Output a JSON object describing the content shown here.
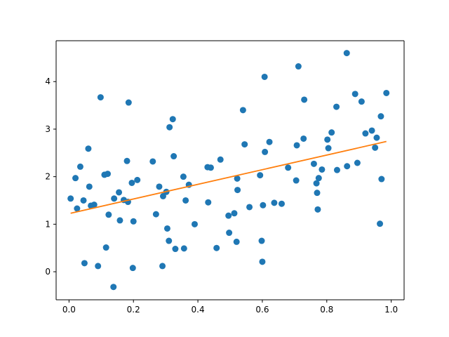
{
  "chart_data": {
    "type": "scatter",
    "title": "",
    "xlabel": "",
    "ylabel": "",
    "xlim": [
      -0.04,
      1.04
    ],
    "ylim": [
      -0.59,
      4.86
    ],
    "grid": false,
    "x_ticks": [
      0.0,
      0.2,
      0.4,
      0.6,
      0.8,
      1.0
    ],
    "x_tick_labels": [
      "0.0",
      "0.2",
      "0.4",
      "0.6",
      "0.8",
      "1.0"
    ],
    "y_ticks": [
      0,
      1,
      2,
      3,
      4
    ],
    "y_tick_labels": [
      "0",
      "1",
      "2",
      "3",
      "4"
    ],
    "colors": {
      "points": "#1f77b4",
      "fit_line": "#ff7f0e"
    },
    "series": [
      {
        "kind": "points",
        "x": [
          0.005,
          0.02,
          0.025,
          0.035,
          0.045,
          0.048,
          0.06,
          0.063,
          0.068,
          0.078,
          0.09,
          0.098,
          0.11,
          0.115,
          0.12,
          0.123,
          0.138,
          0.14,
          0.155,
          0.158,
          0.17,
          0.18,
          0.183,
          0.185,
          0.195,
          0.198,
          0.2,
          0.212,
          0.26,
          0.27,
          0.28,
          0.29,
          0.292,
          0.302,
          0.305,
          0.31,
          0.312,
          0.322,
          0.325,
          0.33,
          0.355,
          0.357,
          0.362,
          0.372,
          0.39,
          0.43,
          0.432,
          0.44,
          0.458,
          0.47,
          0.495,
          0.497,
          0.513,
          0.52,
          0.522,
          0.523,
          0.54,
          0.545,
          0.56,
          0.593,
          0.598,
          0.6,
          0.602,
          0.607,
          0.608,
          0.622,
          0.637,
          0.66,
          0.68,
          0.705,
          0.707,
          0.712,
          0.728,
          0.73,
          0.76,
          0.768,
          0.77,
          0.772,
          0.775,
          0.785,
          0.802,
          0.805,
          0.815,
          0.83,
          0.832,
          0.862,
          0.863,
          0.888,
          0.895,
          0.908,
          0.92,
          0.94,
          0.95,
          0.955,
          0.965,
          0.968,
          0.97,
          0.985
        ],
        "y": [
          1.54,
          1.97,
          1.33,
          2.21,
          1.5,
          0.18,
          2.59,
          1.79,
          1.39,
          1.41,
          0.12,
          3.67,
          2.04,
          0.51,
          2.06,
          1.2,
          -0.32,
          1.54,
          1.67,
          1.08,
          1.51,
          2.33,
          1.47,
          3.56,
          1.87,
          0.08,
          1.06,
          1.93,
          2.32,
          1.21,
          1.79,
          0.12,
          1.59,
          1.68,
          0.91,
          0.65,
          3.04,
          3.21,
          2.43,
          0.48,
          2.0,
          0.49,
          1.5,
          1.83,
          1.0,
          2.2,
          1.46,
          2.19,
          0.5,
          2.36,
          1.18,
          0.82,
          1.23,
          0.63,
          1.96,
          1.72,
          3.4,
          2.68,
          1.36,
          2.03,
          0.65,
          0.21,
          1.4,
          4.1,
          2.52,
          2.73,
          1.45,
          1.43,
          2.19,
          1.92,
          2.66,
          4.32,
          2.8,
          3.62,
          2.27,
          1.86,
          1.66,
          1.31,
          1.97,
          2.15,
          2.78,
          2.6,
          2.93,
          3.47,
          2.14,
          4.6,
          2.22,
          3.74,
          2.29,
          3.58,
          2.91,
          2.97,
          2.61,
          2.82,
          1.01,
          3.27,
          1.95,
          3.76
        ]
      },
      {
        "kind": "line",
        "x": [
          0.005,
          0.985
        ],
        "y": [
          1.23,
          2.74
        ]
      }
    ]
  }
}
